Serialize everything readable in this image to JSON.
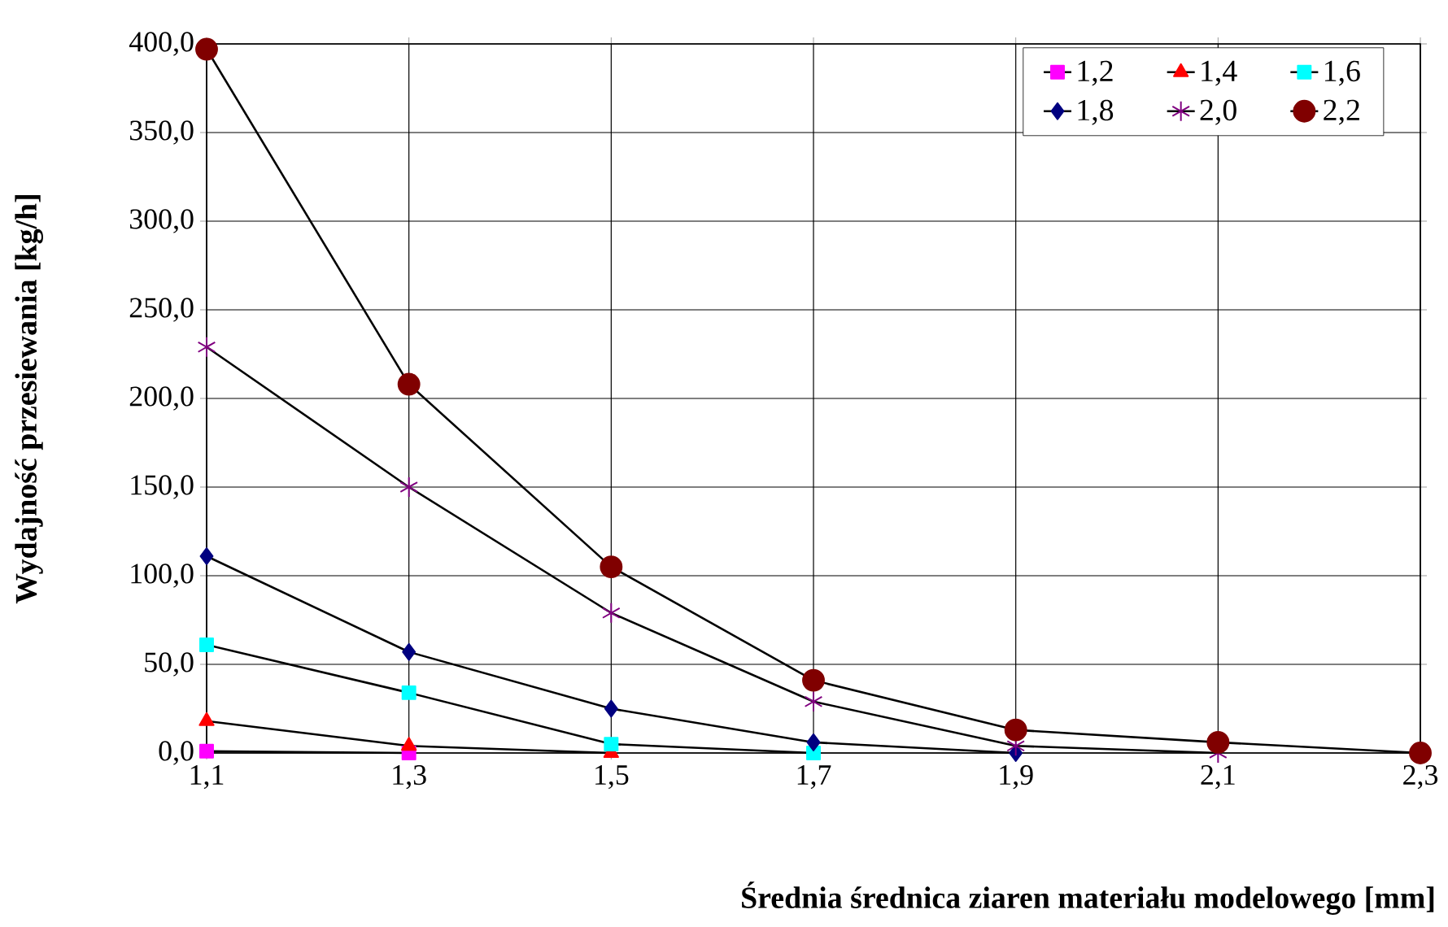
{
  "chart_data": {
    "type": "line",
    "xlabel": "Średnia średnica ziaren materiału modelowego [mm]",
    "ylabel": "Wydajność przesiewania [kg/h]",
    "x": [
      1.1,
      1.3,
      1.5,
      1.7,
      1.9,
      2.1,
      2.3
    ],
    "xlim": [
      1.1,
      2.3
    ],
    "xticks": [
      {
        "value": 1.1,
        "label": "1,1"
      },
      {
        "value": 1.3,
        "label": "1,3"
      },
      {
        "value": 1.5,
        "label": "1,5"
      },
      {
        "value": 1.7,
        "label": "1,7"
      },
      {
        "value": 1.9,
        "label": "1,9"
      },
      {
        "value": 2.1,
        "label": "2,1"
      },
      {
        "value": 2.3,
        "label": "2,3"
      }
    ],
    "ylim": [
      0,
      400
    ],
    "yticks": [
      {
        "value": 0,
        "label": "0,0"
      },
      {
        "value": 50,
        "label": "50,0"
      },
      {
        "value": 100,
        "label": "100,0"
      },
      {
        "value": 150,
        "label": "150,0"
      },
      {
        "value": 200,
        "label": "200,0"
      },
      {
        "value": 250,
        "label": "250,0"
      },
      {
        "value": 300,
        "label": "300,0"
      },
      {
        "value": 350,
        "label": "350,0"
      },
      {
        "value": 400,
        "label": "400,0"
      }
    ],
    "grid": true,
    "legend": "top right",
    "series": [
      {
        "name": "1,2",
        "color": "#ff00ff",
        "marker": "square",
        "values": [
          1,
          0,
          null,
          null,
          null,
          null,
          null
        ]
      },
      {
        "name": "1,4",
        "color": "#ff0000",
        "marker": "triangle",
        "values": [
          18,
          4,
          0,
          null,
          null,
          null,
          null
        ]
      },
      {
        "name": "1,6",
        "color": "#00ffff",
        "marker": "square",
        "values": [
          61,
          34,
          5,
          0,
          null,
          null,
          null
        ]
      },
      {
        "name": "1,8",
        "color": "#000080",
        "marker": "diamond",
        "values": [
          111,
          57,
          25,
          6,
          0,
          null,
          null
        ]
      },
      {
        "name": "2,0",
        "color": "#800080",
        "marker": "cross",
        "values": [
          229,
          150,
          79,
          29,
          4,
          0,
          null
        ]
      },
      {
        "name": "2,2",
        "color": "#800000",
        "marker": "circle",
        "values": [
          397,
          208,
          105,
          41,
          13,
          6,
          0
        ]
      }
    ]
  }
}
